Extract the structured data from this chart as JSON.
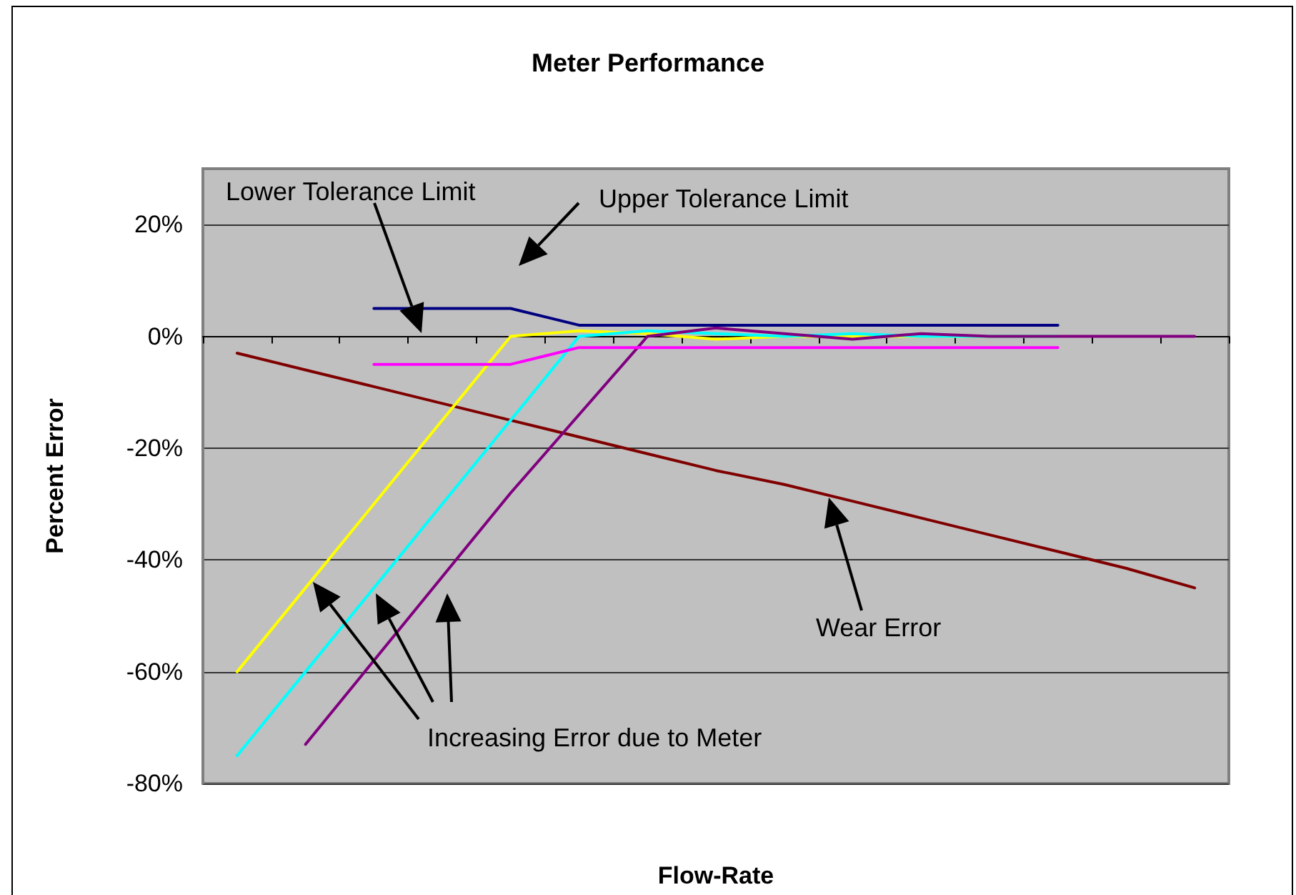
{
  "chart_data": {
    "type": "line",
    "title": "Meter Performance",
    "xlabel": "Flow-Rate",
    "ylabel": "Percent Error",
    "categories": [
      null,
      null,
      null,
      null,
      null,
      null,
      null,
      null,
      null,
      null,
      null,
      null,
      null,
      null,
      null
    ],
    "series": [
      {
        "color": "#800000",
        "values": [
          -3,
          -6,
          -9,
          -12,
          -15,
          -18,
          -21,
          -24,
          -26.5,
          -29.5,
          -32.5,
          -35.5,
          -38.5,
          -41.5,
          -45
        ]
      },
      {
        "color": "#ffff00",
        "values": [
          -60,
          -45,
          -30,
          -15,
          0,
          1,
          0.5,
          -0.5,
          0,
          0,
          0,
          0,
          0,
          null,
          null
        ]
      },
      {
        "color": "#00ffff",
        "values": [
          -75,
          -60,
          -45,
          -30,
          -15,
          0,
          1,
          0.5,
          0,
          0.5,
          0,
          0,
          0,
          null,
          null
        ]
      },
      {
        "color": "#800080",
        "values": [
          null,
          -73,
          -58,
          -43,
          -28,
          -14,
          0,
          1.5,
          0.5,
          -0.5,
          0.5,
          0,
          0,
          0,
          0
        ]
      },
      {
        "color": "#000080",
        "values": [
          null,
          null,
          5,
          5,
          5,
          2,
          2,
          2,
          2,
          2,
          2,
          2,
          2,
          null,
          null
        ]
      },
      {
        "color": "#ff00ff",
        "values": [
          null,
          null,
          -5,
          -5,
          -5,
          -2,
          -2,
          -2,
          -2,
          -2,
          -2,
          -2,
          -2,
          null,
          null
        ]
      }
    ],
    "ylim": [
      -80,
      30
    ],
    "yticks": [
      {
        "value": -80,
        "label": "-80%"
      },
      {
        "value": -60,
        "label": "-60%"
      },
      {
        "value": -40,
        "label": "-40%"
      },
      {
        "value": -20,
        "label": "-20%"
      },
      {
        "value": 0,
        "label": "0%"
      },
      {
        "value": 20,
        "label": "20%"
      }
    ],
    "grid": "y",
    "marker": "none",
    "line_style": "solid",
    "annotations": [
      "Lower Tolerance Limit",
      "Upper Tolerance Limit",
      "Increasing Error due to Meter",
      "Wear Error"
    ]
  }
}
